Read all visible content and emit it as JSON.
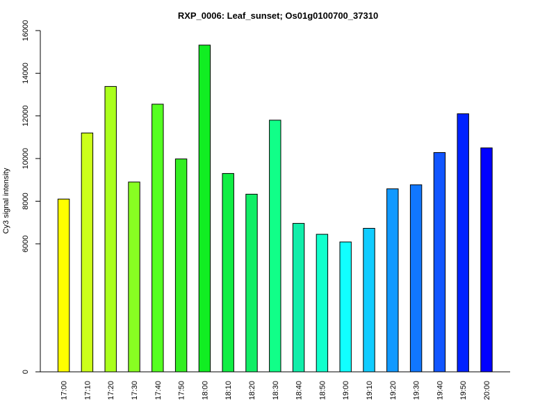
{
  "chart_data": {
    "type": "bar",
    "title": "RXP_0006: Leaf_sunset; Os01g0100700_37310",
    "xlabel": "",
    "ylabel": "Cy3 signal intensity",
    "categories": [
      "17:00",
      "17:10",
      "17:20",
      "17:30",
      "17:40",
      "17:50",
      "18:00",
      "18:10",
      "18:20",
      "18:30",
      "18:40",
      "18:50",
      "19:00",
      "19:10",
      "19:20",
      "19:30",
      "19:40",
      "19:50",
      "20:00"
    ],
    "values": [
      8100,
      11200,
      13380,
      8900,
      12550,
      9980,
      15320,
      9300,
      8330,
      11800,
      6960,
      6450,
      6090,
      6730,
      8580,
      8770,
      10280,
      12100,
      10500
    ],
    "colors": [
      "#FFFF00",
      "#CCFF1A",
      "#AAFF1C",
      "#88FF22",
      "#55FF22",
      "#33EE22",
      "#11EE22",
      "#11EE44",
      "#11EE66",
      "#11FF88",
      "#11EEAA",
      "#11FFCC",
      "#11FFFF",
      "#11CCFF",
      "#1199FF",
      "#1177FF",
      "#1155FF",
      "#0022FF",
      "#0000FF"
    ],
    "ylim": [
      0,
      16000
    ],
    "yticks": [
      0,
      6000,
      8000,
      10000,
      12000,
      14000,
      16000
    ],
    "grid": false,
    "legend": false
  }
}
